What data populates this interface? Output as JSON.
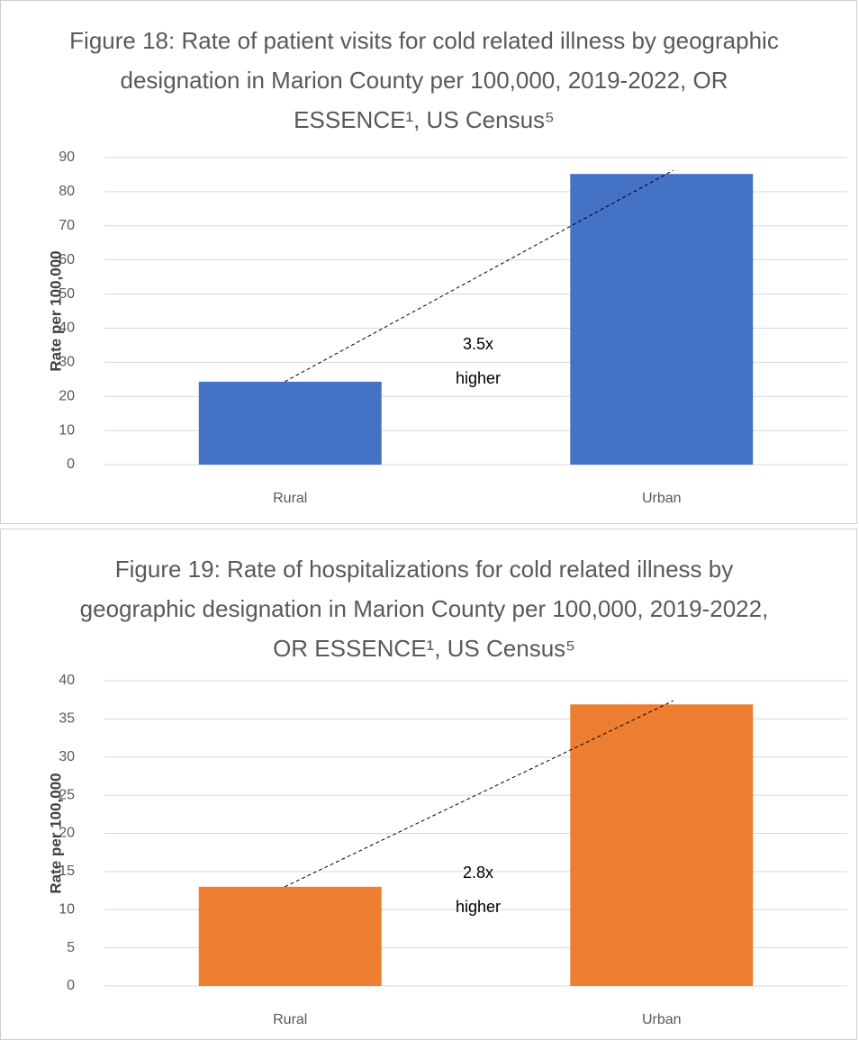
{
  "chart_data": [
    {
      "type": "bar",
      "title": "Figure 18: Rate of patient visits for cold related illness by geographic designation in Marion County per 100,000, 2019-2022, OR ESSENCE¹, US Census⁵",
      "y_label": "Rate per 100,000",
      "categories": [
        "Rural",
        "Urban"
      ],
      "values": [
        24.3,
        85.2
      ],
      "color": "#4472c4",
      "ylim": [
        0,
        90
      ],
      "yticks": [
        0,
        10,
        20,
        30,
        40,
        50,
        60,
        70,
        80,
        90
      ],
      "grid": true,
      "annotation": "3.5x higher"
    },
    {
      "type": "bar",
      "title": "Figure 19: Rate of hospitalizations for cold related illness by geographic designation in Marion County per 100,000, 2019-2022, OR ESSENCE¹, US Census⁵",
      "y_label": "Rate per 100,000",
      "categories": [
        "Rural",
        "Urban"
      ],
      "values": [
        13.0,
        36.9
      ],
      "color": "#ed7d31",
      "ylim": [
        0,
        40
      ],
      "yticks": [
        0,
        5,
        10,
        15,
        20,
        25,
        30,
        35,
        40
      ],
      "grid": true,
      "annotation": "2.8x higher"
    }
  ]
}
